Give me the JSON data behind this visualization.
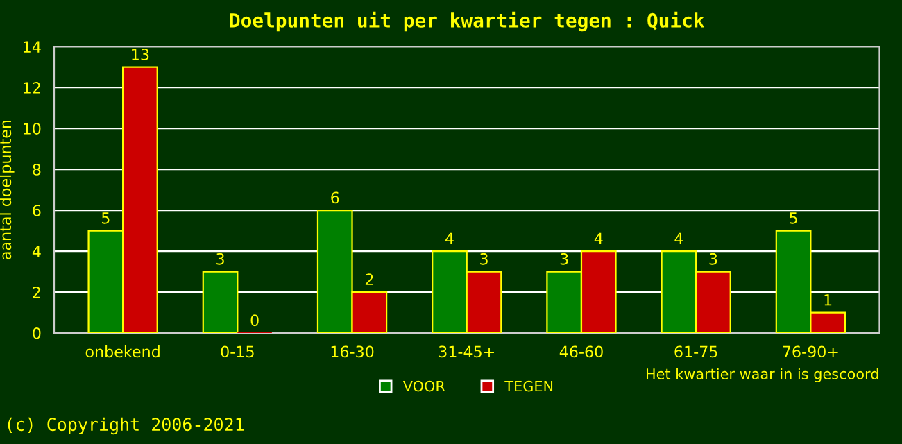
{
  "chart_data": {
    "type": "bar",
    "title": "Doelpunten uit per kwartier tegen : Quick",
    "ylabel": "aantal doelpunten",
    "xlabel": "Het kwartier waar in is gescoord",
    "categories": [
      "onbekend",
      "0-15",
      "16-30",
      "31-45+",
      "46-60",
      "61-75",
      "76-90+"
    ],
    "series": [
      {
        "name": "VOOR",
        "color": "#008000",
        "values": [
          5,
          3,
          6,
          4,
          3,
          4,
          5
        ]
      },
      {
        "name": "TEGEN",
        "color": "#cc0000",
        "values": [
          13,
          0,
          2,
          3,
          4,
          3,
          1
        ]
      }
    ],
    "ylim": [
      0,
      14
    ],
    "yticks": [
      0,
      2,
      4,
      6,
      8,
      10,
      12,
      14
    ],
    "grid": "y",
    "legend": "bottom",
    "data_labels": true,
    "annotations": [
      "(c) Copyright 2006-2021"
    ]
  }
}
